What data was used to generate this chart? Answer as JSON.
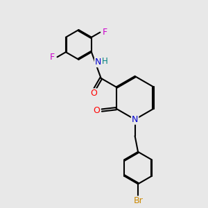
{
  "bg_color": "#e8e8e8",
  "bond_color": "#000000",
  "N_color": "#0000cd",
  "O_color": "#ff0000",
  "F_color": "#cc00cc",
  "Br_color": "#cc8800",
  "lw": 1.5,
  "dbo": 0.055,
  "xlim": [
    0,
    10
  ],
  "ylim": [
    0,
    10
  ]
}
